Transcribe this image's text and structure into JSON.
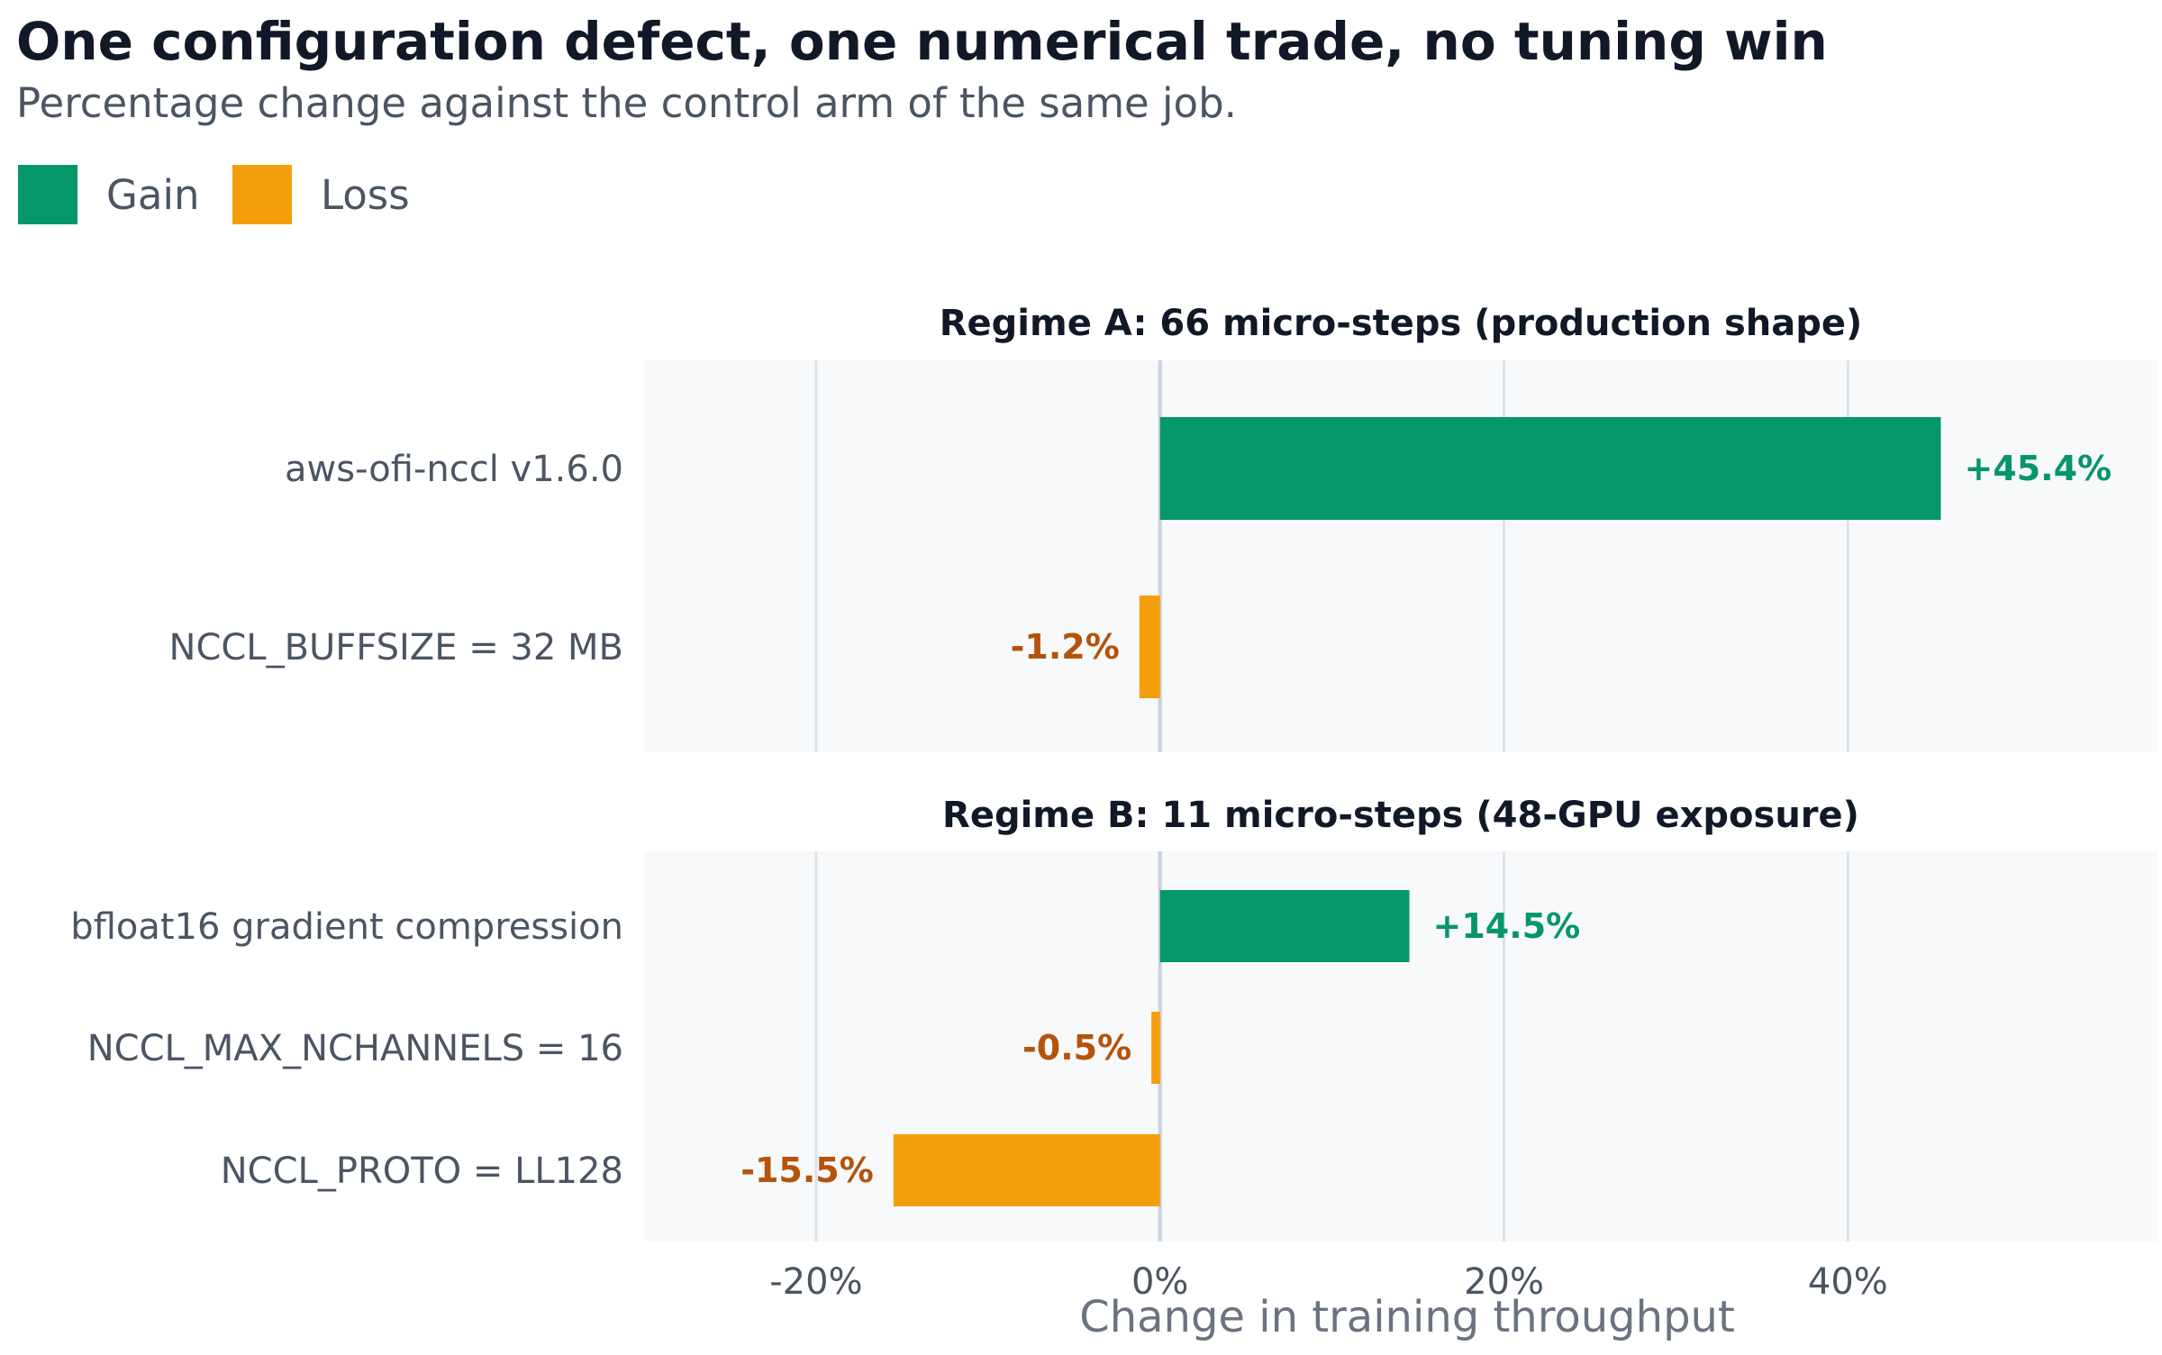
{
  "chart_data": {
    "type": "bar",
    "orientation": "horizontal",
    "title": "One configuration defect, one numerical trade, no tuning win",
    "subtitle": "Percentage change against the control arm of the same job.",
    "xlabel": "Change in training throughput",
    "xlim": [
      -30,
      58
    ],
    "xticks": [
      -20,
      0,
      20,
      40
    ],
    "xtick_labels": [
      "-20%",
      "0%",
      "20%",
      "40%"
    ],
    "grid": "vertical",
    "legend": {
      "placement": "top-left",
      "entries": [
        {
          "label": "Gain",
          "color": "#059669"
        },
        {
          "label": "Loss",
          "color": "#f59e0b"
        }
      ]
    },
    "colors": {
      "gain": "#059669",
      "loss": "#f59e0b",
      "gain_text": "#059669",
      "loss_text": "#b45309",
      "panel_bg": "#f8f9fb",
      "grid": "#dde3ec",
      "zero_line": "#c8d2df"
    },
    "panels": [
      {
        "title": "Regime A: 66 micro-steps (production shape)",
        "categories": [
          "aws-ofi-nccl v1.6.0",
          "NCCL_BUFFSIZE = 32 MB"
        ],
        "values": [
          45.4,
          -1.2
        ],
        "value_labels": [
          "+45.4%",
          "-1.2%"
        ]
      },
      {
        "title": "Regime B: 11 micro-steps (48-GPU exposure)",
        "categories": [
          "bfloat16 gradient compression",
          "NCCL_MAX_NCHANNELS = 16",
          "NCCL_PROTO = LL128"
        ],
        "values": [
          14.5,
          -0.5,
          -15.5
        ],
        "value_labels": [
          "+14.5%",
          "-0.5%",
          "-15.5%"
        ]
      }
    ]
  }
}
